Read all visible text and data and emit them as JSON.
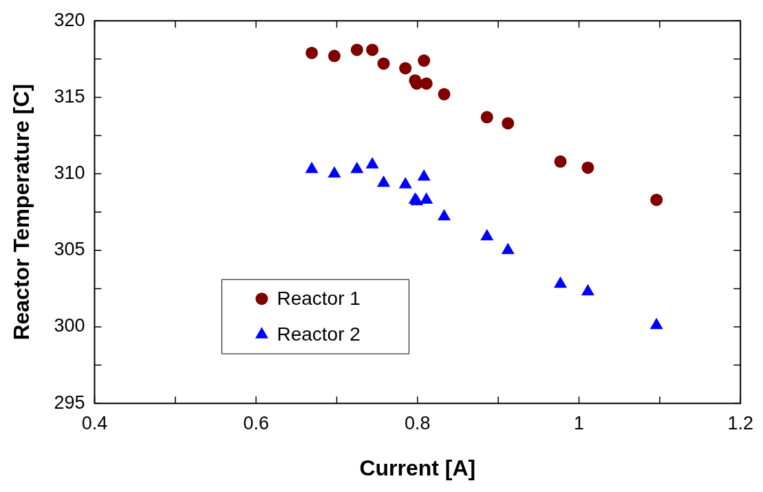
{
  "chart_data": {
    "type": "scatter",
    "xlabel": "Current [A]",
    "ylabel": "Reactor Temperature [C]",
    "xlim": [
      0.4,
      1.2
    ],
    "xticks": [
      0.4,
      {
        "value": 0.5,
        "label": null
      },
      0.6,
      {
        "value": 0.7,
        "label": null
      },
      0.8,
      {
        "value": 0.9,
        "label": null
      },
      {
        "value": 1,
        "label": "1"
      },
      {
        "value": 1.1,
        "label": null
      },
      1.2
    ],
    "ylim": [
      295,
      320
    ],
    "yticks": [
      295,
      {
        "value": 297.5,
        "label": null
      },
      300,
      {
        "value": 302.5,
        "label": null
      },
      305,
      {
        "value": 307.5,
        "label": null
      },
      310,
      {
        "value": 312.5,
        "label": null
      },
      315,
      {
        "value": 317.5,
        "label": null
      },
      320
    ],
    "grid": false,
    "legend": "bottom left",
    "series": [
      {
        "name": "Reactor 1",
        "color": "#800000",
        "marker": "circle",
        "x": [
          0.669,
          0.697,
          0.725,
          0.744,
          0.758,
          0.785,
          0.797,
          0.799,
          0.808,
          0.811,
          0.833,
          0.886,
          0.912,
          0.977,
          1.011,
          1.096
        ],
        "values": [
          317.9,
          317.7,
          318.1,
          318.1,
          317.2,
          316.9,
          316.1,
          315.9,
          317.4,
          315.9,
          315.2,
          313.7,
          313.3,
          310.8,
          310.4,
          308.3
        ]
      },
      {
        "name": "Reactor 2",
        "color": "#0000ff",
        "marker": "triangle",
        "x": [
          0.669,
          0.697,
          0.725,
          0.744,
          0.758,
          0.785,
          0.797,
          0.799,
          0.808,
          0.811,
          0.833,
          0.886,
          0.912,
          0.977,
          1.011,
          1.096
        ],
        "values": [
          310.3,
          310.0,
          310.3,
          310.6,
          309.4,
          309.3,
          308.3,
          308.2,
          309.8,
          308.3,
          307.2,
          305.9,
          305.0,
          302.8,
          302.3,
          300.1
        ]
      }
    ]
  }
}
